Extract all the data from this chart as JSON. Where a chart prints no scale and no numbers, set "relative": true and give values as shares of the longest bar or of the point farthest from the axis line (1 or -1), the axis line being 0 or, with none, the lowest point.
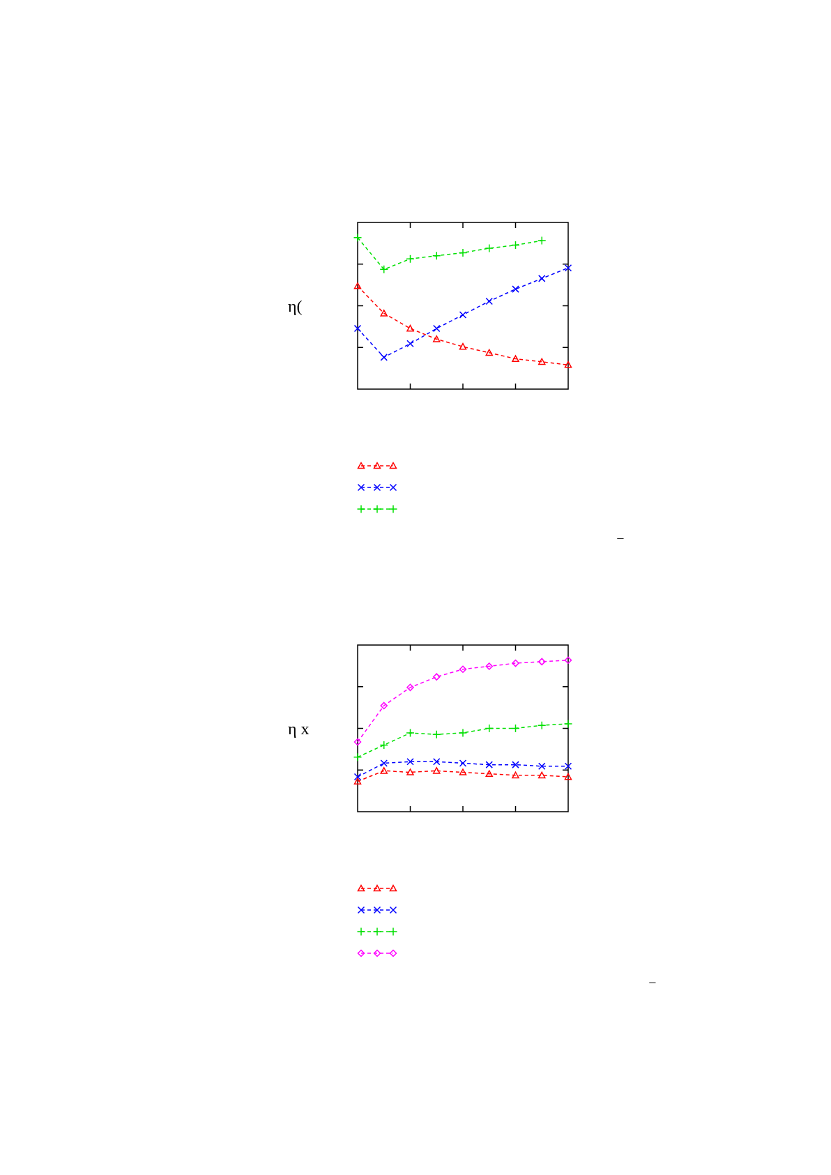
{
  "chart_data": [
    {
      "type": "line",
      "ylabel": "η(",
      "relative": true,
      "categories": [
        null,
        null,
        null,
        null,
        null,
        null,
        null,
        null,
        null
      ],
      "line_style": "dashed",
      "annotations": [
        "−"
      ],
      "series": [
        {
          "color": "#ff0000",
          "marker": "triangle",
          "values": [
            0.68,
            0.5,
            0.4,
            0.33,
            0.28,
            0.24,
            0.2,
            0.18,
            0.16
          ]
        },
        {
          "color": "#0000ff",
          "marker": "cross",
          "values": [
            0.4,
            0.21,
            0.3,
            0.4,
            0.49,
            0.58,
            0.66,
            0.73,
            0.8
          ]
        },
        {
          "color": "#00e000",
          "marker": "plus",
          "values": [
            1,
            0.79,
            0.86,
            0.88,
            0.9,
            0.93,
            0.95,
            0.98,
            null
          ]
        }
      ]
    },
    {
      "type": "line",
      "ylabel": "η x",
      "relative": true,
      "categories": [
        null,
        null,
        null,
        null,
        null,
        null,
        null,
        null,
        null
      ],
      "line_style": "dashed",
      "annotations": [
        "−"
      ],
      "series": [
        {
          "color": "#ff0000",
          "marker": "triangle",
          "values": [
            0.2,
            0.27,
            0.26,
            0.27,
            0.26,
            0.25,
            0.24,
            0.24,
            0.23
          ]
        },
        {
          "color": "#0000ff",
          "marker": "cross",
          "values": [
            0.23,
            0.32,
            0.33,
            0.33,
            0.32,
            0.31,
            0.31,
            0.3,
            0.3
          ]
        },
        {
          "color": "#00e000",
          "marker": "plus",
          "values": [
            0.36,
            0.44,
            0.52,
            0.51,
            0.52,
            0.55,
            0.55,
            0.57,
            0.58
          ]
        },
        {
          "color": "#ff00ff",
          "marker": "diamond",
          "values": [
            0.46,
            0.7,
            0.82,
            0.89,
            0.94,
            0.96,
            0.98,
            0.99,
            1
          ]
        }
      ]
    }
  ]
}
